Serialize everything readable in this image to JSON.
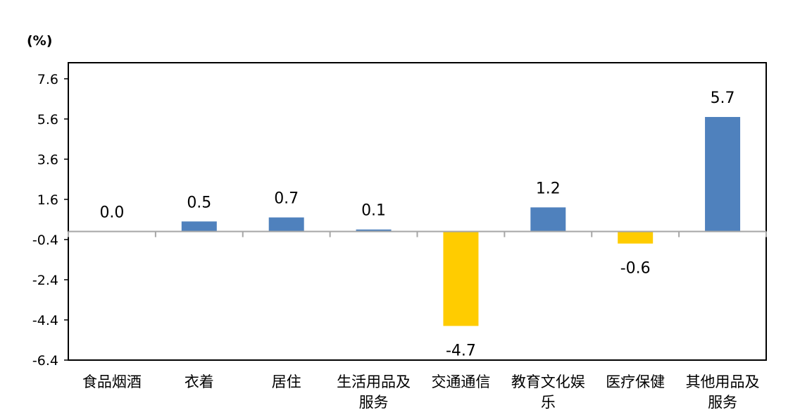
{
  "chart_data": {
    "type": "bar",
    "ylabel": "(%)",
    "categories": [
      "食品烟酒",
      "衣着",
      "居住",
      "生活用品及服务",
      "交通通信",
      "教育文化娱乐",
      "医疗保健",
      "其他用品及服务"
    ],
    "category_lines": [
      [
        "食品烟酒"
      ],
      [
        "衣着"
      ],
      [
        "居住"
      ],
      [
        "生活用品及",
        "服务"
      ],
      [
        "交通通信"
      ],
      [
        "教育文化娱",
        "乐"
      ],
      [
        "医疗保健"
      ],
      [
        "其他用品及",
        "服务"
      ]
    ],
    "values": [
      0.0,
      0.5,
      0.7,
      0.1,
      -4.7,
      1.2,
      -0.6,
      5.7
    ],
    "data_labels": [
      "0.0",
      "0.5",
      "0.7",
      "0.1",
      "-4.7",
      "1.2",
      "-0.6",
      "5.7"
    ],
    "ylim": [
      -6.4,
      8.4
    ],
    "yticks": [
      -6.4,
      -4.4,
      -2.4,
      -0.4,
      1.6,
      3.6,
      5.6,
      7.6
    ],
    "ytick_labels": [
      "-6.4",
      "-4.4",
      "-2.4",
      "-0.4",
      "1.6",
      "3.6",
      "5.6",
      "7.6"
    ],
    "grid": false,
    "legend": "none",
    "colors": {
      "positive": "#4F81BD",
      "negative": "#FFCC00",
      "axis": "#A6A6A6",
      "frame": "#000000"
    }
  }
}
